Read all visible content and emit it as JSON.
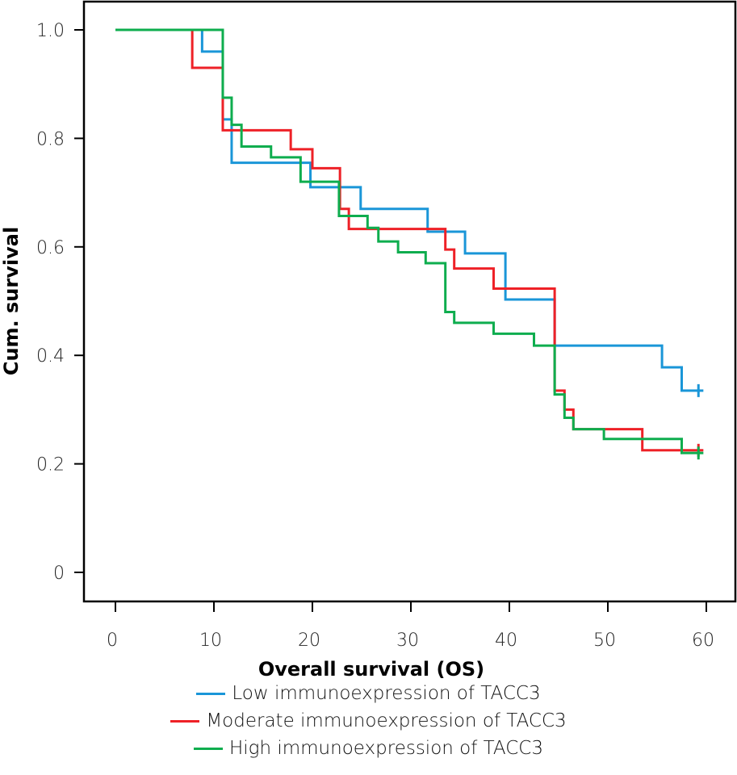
{
  "chart_data": {
    "type": "line",
    "subtype": "kaplan-meier-step",
    "title": "",
    "xlabel": "Overall survival (OS)",
    "ylabel": "Cum. survival",
    "xlim": [
      0,
      60
    ],
    "ylim": [
      0,
      1.0
    ],
    "xticks": [
      0,
      10,
      20,
      30,
      40,
      50,
      60
    ],
    "xtick_labels": [
      "0",
      "10",
      "20",
      "30",
      "40",
      "50",
      "60"
    ],
    "yticks": [
      0,
      0.2,
      0.4,
      0.6,
      0.8,
      1.0
    ],
    "ytick_labels": [
      "0",
      "0.2",
      "0.4",
      "0.6",
      "0.8",
      "1.0"
    ],
    "grid": false,
    "legend_position": "bottom",
    "series": [
      {
        "name": "Low immunoexpression of TACC3",
        "color": "#1a96d8",
        "steps": [
          [
            0,
            1.0
          ],
          [
            8.8,
            0.96
          ],
          [
            10.9,
            0.835
          ],
          [
            11.8,
            0.755
          ],
          [
            19.8,
            0.71
          ],
          [
            24.9,
            0.67
          ],
          [
            31.7,
            0.628
          ],
          [
            35.5,
            0.588
          ],
          [
            39.6,
            0.503
          ],
          [
            44.6,
            0.418
          ],
          [
            55.5,
            0.378
          ],
          [
            57.5,
            0.335
          ]
        ],
        "end_time": 59.7,
        "censored": [
          [
            59.2,
            0.335
          ]
        ]
      },
      {
        "name": "Moderate immunoexpression of TACC3",
        "color": "#ee2127",
        "steps": [
          [
            0,
            1.0
          ],
          [
            7.8,
            0.93
          ],
          [
            10.9,
            0.815
          ],
          [
            17.8,
            0.78
          ],
          [
            20.0,
            0.745
          ],
          [
            22.8,
            0.67
          ],
          [
            23.7,
            0.633
          ],
          [
            33.5,
            0.595
          ],
          [
            34.4,
            0.56
          ],
          [
            38.4,
            0.523
          ],
          [
            44.6,
            0.335
          ],
          [
            45.6,
            0.3
          ],
          [
            46.5,
            0.264
          ],
          [
            53.5,
            0.225
          ]
        ],
        "end_time": 59.7,
        "censored": [
          [
            59.2,
            0.225
          ]
        ]
      },
      {
        "name": "High immunoexpression of TACC3",
        "color": "#0ead4e",
        "steps": [
          [
            0,
            1.0
          ],
          [
            10.9,
            0.875
          ],
          [
            11.8,
            0.825
          ],
          [
            12.8,
            0.785
          ],
          [
            15.8,
            0.765
          ],
          [
            18.8,
            0.72
          ],
          [
            22.7,
            0.657
          ],
          [
            25.6,
            0.635
          ],
          [
            26.7,
            0.61
          ],
          [
            28.7,
            0.59
          ],
          [
            31.5,
            0.57
          ],
          [
            33.5,
            0.48
          ],
          [
            34.4,
            0.46
          ],
          [
            38.4,
            0.44
          ],
          [
            42.5,
            0.418
          ],
          [
            44.6,
            0.328
          ],
          [
            45.6,
            0.285
          ],
          [
            46.5,
            0.264
          ],
          [
            49.6,
            0.246
          ],
          [
            57.5,
            0.22
          ]
        ],
        "end_time": 59.7,
        "censored": [
          [
            59.2,
            0.22
          ]
        ]
      }
    ]
  },
  "legend": {
    "items": [
      {
        "label": "Low immunoexpression of TACC3",
        "color": "#1a96d8"
      },
      {
        "label": "Moderate immunoexpression of TACC3",
        "color": "#ee2127"
      },
      {
        "label": "High immunoexpression of TACC3",
        "color": "#0ead4e"
      }
    ]
  }
}
